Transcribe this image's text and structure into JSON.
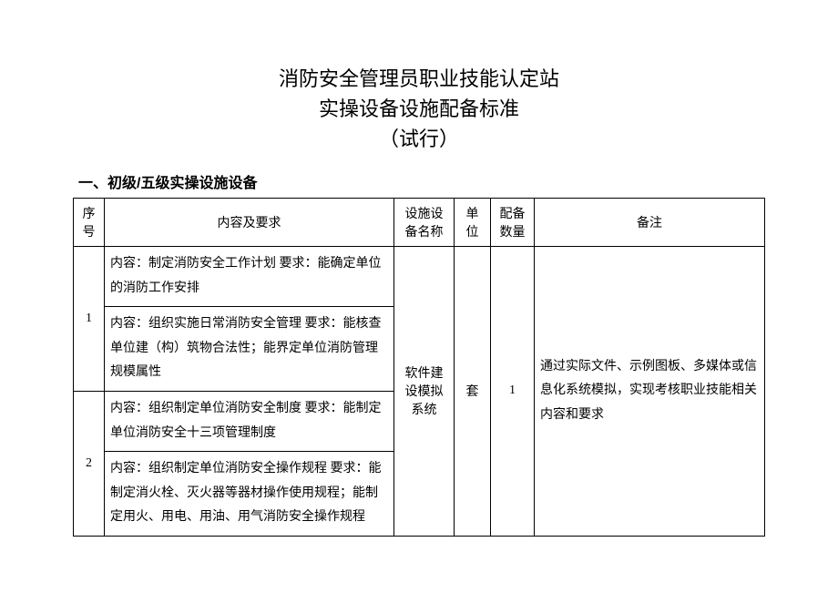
{
  "title": {
    "line1": "消防安全管理员职业技能认定站",
    "line2": "实操设备设施配备标准",
    "line3": "（试行）"
  },
  "section_heading": "一、初级/五级实操设施设备",
  "table": {
    "columns": {
      "idx": "序号",
      "req": "内容及要求",
      "name": "设施设备名称",
      "unit": "单位",
      "qty": "配备数量",
      "note": "备注"
    },
    "rows": [
      {
        "idx": "1",
        "req_cells": [
          "内容：制定消防安全工作计划\n要求：能确定单位的消防工作安排",
          "内容：组织实施日常消防安全管理\n要求：能核查单位建（构）筑物合法性；能界定单位消防管理规模属性"
        ]
      },
      {
        "idx": "2",
        "req_cells": [
          "内容：组织制定单位消防安全制度\n要求：能制定单位消防安全十三项管理制度",
          "内容：组织制定单位消防安全操作规程\n要求：能制定消火栓、灭火器等器材操作使用规程；能制定用火、用电、用油、用气消防安全操作规程"
        ]
      }
    ],
    "merged": {
      "name": "软件建设模拟系统",
      "unit": "套",
      "qty": "1",
      "note": "通过实际文件、示例图板、多媒体或信息化系统模拟，实现考核职业技能相关内容和要求"
    }
  }
}
